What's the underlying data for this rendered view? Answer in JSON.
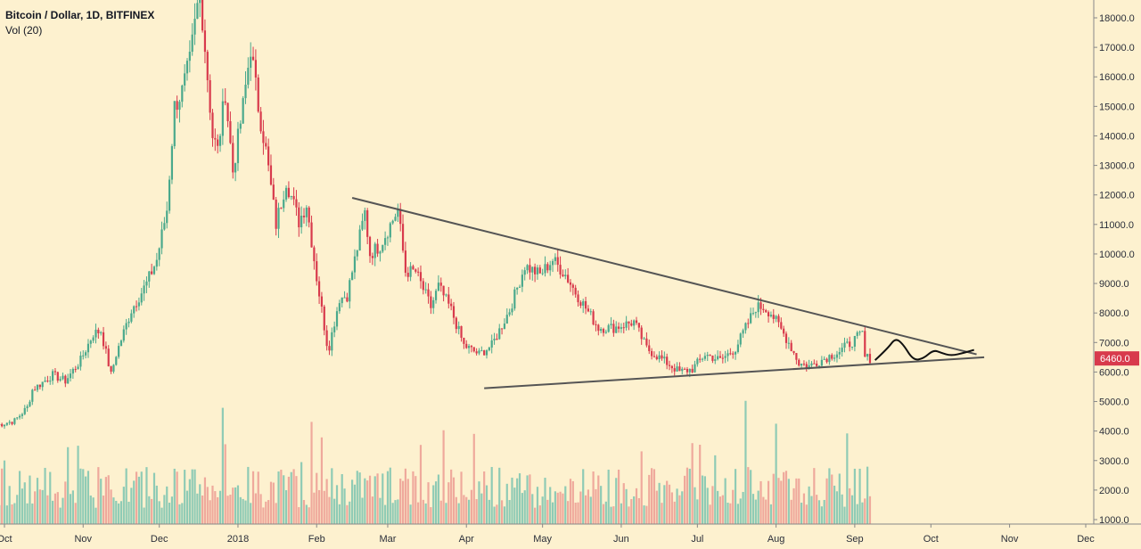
{
  "header": {
    "title": "Bitcoin / Dollar, 1D, BITFINEX",
    "volume_indicator": "Vol (20)"
  },
  "colors": {
    "background": "#fdf1cf",
    "up": "#4aa98c",
    "down": "#d83a4c",
    "vol_up": "#8fcbb5",
    "vol_down": "#efa99c",
    "trendline": "#555555",
    "projection": "#111111",
    "price_tag": "#d83a4c"
  },
  "price_tag": {
    "value": 6460.0,
    "label": "6460.0"
  },
  "chart_data": {
    "type": "candlestick",
    "y_axis": {
      "min": 1000,
      "max": 18000,
      "ticks": [
        "18000.0",
        "17000.0",
        "16000.0",
        "15000.0",
        "14000.0",
        "13000.0",
        "12000.0",
        "11000.0",
        "10000.0",
        "9000.0",
        "8000.0",
        "7000.0",
        "6000.0",
        "5000.0",
        "4000.0",
        "3000.0",
        "2000.0",
        "1000.0"
      ],
      "tick_values": [
        18000,
        17000,
        16000,
        15000,
        14000,
        13000,
        12000,
        11000,
        10000,
        9000,
        8000,
        7000,
        6000,
        5000,
        4000,
        3000,
        2000,
        1000
      ]
    },
    "x_axis": {
      "labels": [
        "Oct",
        "Nov",
        "Dec",
        "2018",
        "Feb",
        "Mar",
        "Apr",
        "May",
        "Jun",
        "Jul",
        "Aug",
        "Sep",
        "Oct",
        "Nov",
        "Dec"
      ],
      "dates": [
        "2017-10-01",
        "2017-11-01",
        "2017-12-01",
        "2018-01-01",
        "2018-02-01",
        "2018-03-01",
        "2018-04-01",
        "2018-05-01",
        "2018-06-01",
        "2018-07-01",
        "2018-08-01",
        "2018-09-01",
        "2018-10-01",
        "2018-11-01",
        "2018-12-01"
      ]
    },
    "price_anchors": [
      [
        "2017-09-28",
        4200
      ],
      [
        "2017-10-05",
        4350
      ],
      [
        "2017-10-10",
        4800
      ],
      [
        "2017-10-12",
        5400
      ],
      [
        "2017-10-20",
        5900
      ],
      [
        "2017-10-25",
        5700
      ],
      [
        "2017-10-31",
        6400
      ],
      [
        "2017-11-05",
        7300
      ],
      [
        "2017-11-08",
        7400
      ],
      [
        "2017-11-12",
        5900
      ],
      [
        "2017-11-14",
        6600
      ],
      [
        "2017-11-20",
        8100
      ],
      [
        "2017-11-26",
        9000
      ],
      [
        "2017-11-30",
        9800
      ],
      [
        "2017-12-04",
        11500
      ],
      [
        "2017-12-07",
        15000
      ],
      [
        "2017-12-10",
        15500
      ],
      [
        "2017-12-13",
        16500
      ],
      [
        "2017-12-17",
        19000
      ],
      [
        "2017-12-22",
        14000
      ],
      [
        "2017-12-24",
        13500
      ],
      [
        "2017-12-27",
        15500
      ],
      [
        "2017-12-30",
        12800
      ],
      [
        "2018-01-03",
        15000
      ],
      [
        "2018-01-06",
        17000
      ],
      [
        "2018-01-09",
        15000
      ],
      [
        "2018-01-12",
        13500
      ],
      [
        "2018-01-16",
        11000
      ],
      [
        "2018-01-20",
        12500
      ],
      [
        "2018-01-25",
        11100
      ],
      [
        "2018-01-28",
        11700
      ],
      [
        "2018-02-01",
        9200
      ],
      [
        "2018-02-05",
        7000
      ],
      [
        "2018-02-06",
        6900
      ],
      [
        "2018-02-10",
        8500
      ],
      [
        "2018-02-13",
        8600
      ],
      [
        "2018-02-20",
        11400
      ],
      [
        "2018-02-22",
        10000
      ],
      [
        "2018-02-26",
        10300
      ],
      [
        "2018-03-05",
        11500
      ],
      [
        "2018-03-08",
        9400
      ],
      [
        "2018-03-12",
        9400
      ],
      [
        "2018-03-18",
        8200
      ],
      [
        "2018-03-21",
        8900
      ],
      [
        "2018-03-26",
        8100
      ],
      [
        "2018-03-31",
        6900
      ],
      [
        "2018-04-06",
        6600
      ],
      [
        "2018-04-11",
        6900
      ],
      [
        "2018-04-18",
        8100
      ],
      [
        "2018-04-24",
        9600
      ],
      [
        "2018-04-30",
        9300
      ],
      [
        "2018-05-05",
        9800
      ],
      [
        "2018-05-10",
        9300
      ],
      [
        "2018-05-14",
        8700
      ],
      [
        "2018-05-23",
        7500
      ],
      [
        "2018-05-29",
        7500
      ],
      [
        "2018-06-06",
        7700
      ],
      [
        "2018-06-11",
        6800
      ],
      [
        "2018-06-24",
        6000
      ],
      [
        "2018-06-29",
        6100
      ],
      [
        "2018-07-04",
        6600
      ],
      [
        "2018-07-10",
        6400
      ],
      [
        "2018-07-16",
        6800
      ],
      [
        "2018-07-24",
        8200
      ],
      [
        "2018-07-27",
        8200
      ],
      [
        "2018-07-30",
        8000
      ],
      [
        "2018-08-06",
        7000
      ],
      [
        "2018-08-10",
        6300
      ],
      [
        "2018-08-14",
        6200
      ],
      [
        "2018-08-21",
        6500
      ],
      [
        "2018-08-26",
        6700
      ],
      [
        "2018-09-04",
        7300
      ],
      [
        "2018-09-05",
        6500
      ],
      [
        "2018-09-07",
        6460
      ]
    ],
    "annotations": {
      "upper_trendline": [
        [
          "2018-02-15",
          11900
        ],
        [
          "2018-10-19",
          6600
        ]
      ],
      "lower_trendline": [
        [
          "2018-04-08",
          5450
        ],
        [
          "2018-10-22",
          6500
        ]
      ],
      "projection_path": [
        [
          "2018-09-09",
          6400
        ],
        [
          "2018-09-14",
          6800
        ],
        [
          "2018-09-17",
          7150
        ],
        [
          "2018-09-20",
          6950
        ],
        [
          "2018-09-24",
          6400
        ],
        [
          "2018-09-28",
          6450
        ],
        [
          "2018-10-02",
          6750
        ],
        [
          "2018-10-05",
          6650
        ],
        [
          "2018-10-09",
          6550
        ],
        [
          "2018-10-14",
          6650
        ],
        [
          "2018-10-18",
          6750
        ]
      ]
    }
  }
}
